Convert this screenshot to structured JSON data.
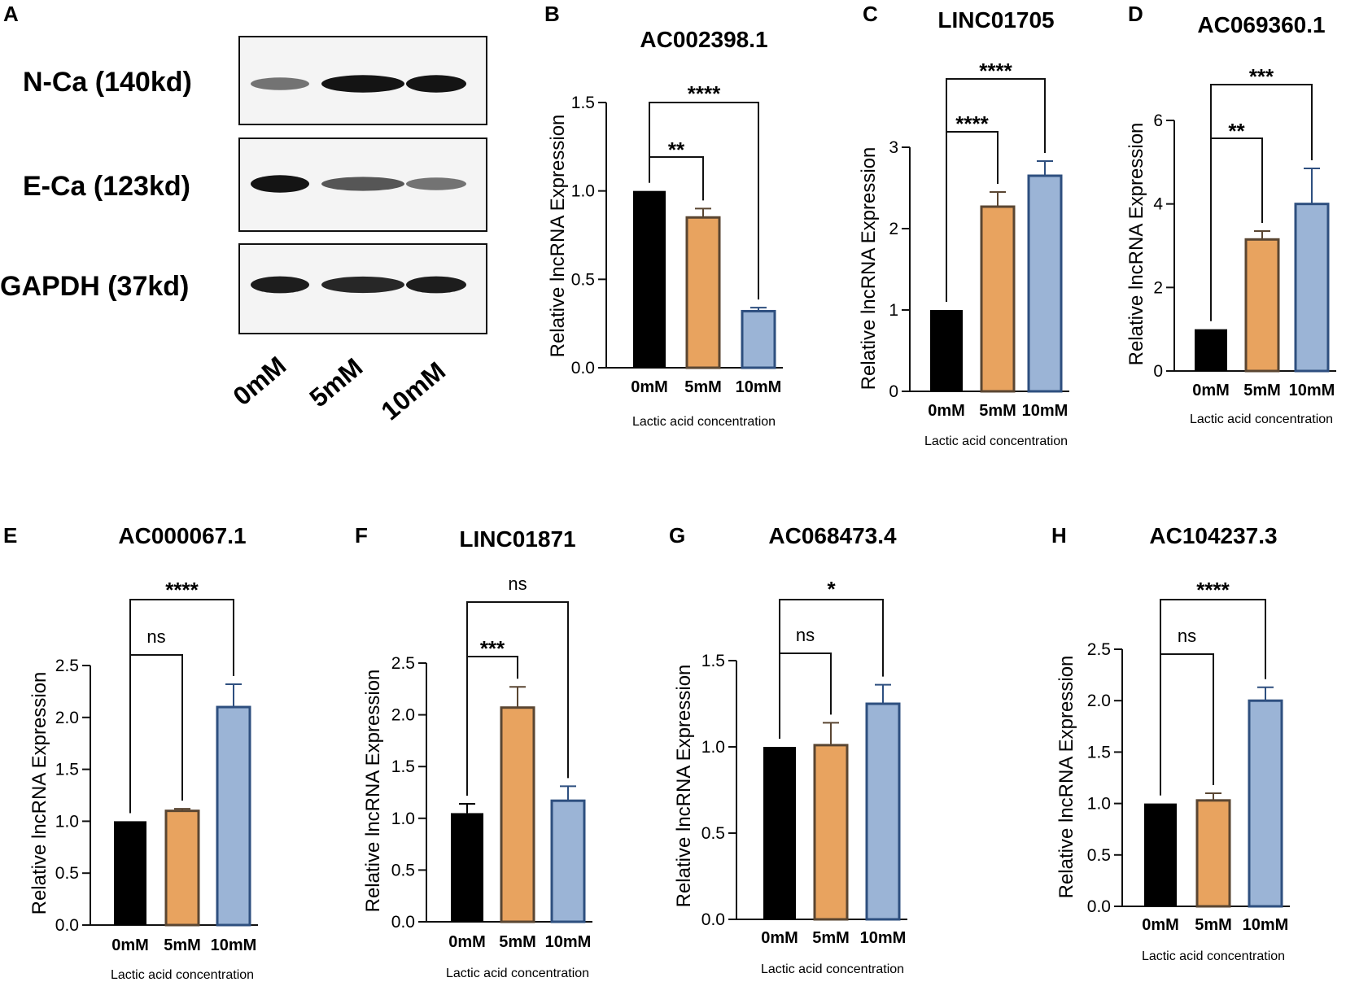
{
  "figure": {
    "western_blot": {
      "letter": "A",
      "rows": [
        {
          "label": "N-Ca (140kd)",
          "intensities": [
            0.45,
            0.95,
            0.95
          ]
        },
        {
          "label": "E-Ca (123kd)",
          "intensities": [
            0.95,
            0.6,
            0.45
          ]
        },
        {
          "label": "GAPDH (37kd)",
          "intensities": [
            0.9,
            0.85,
            0.9
          ]
        }
      ],
      "lanes": [
        "0mM",
        "5mM",
        "10mM"
      ]
    }
  },
  "colors": {
    "bar_0mM": "#000000",
    "bar_5mM": "#e8a35f",
    "bar_10mM": "#9bb4d6",
    "edge_5mM": "#5a4632",
    "edge_10mM": "#2e4f7f"
  },
  "chart_data": [
    {
      "letter": "B",
      "type": "bar",
      "title": "AC002398.1",
      "categories": [
        "0mM",
        "5mM",
        "10mM"
      ],
      "values": [
        1.0,
        0.85,
        0.32
      ],
      "errors": [
        0,
        0.05,
        0.02
      ],
      "ylim": [
        0,
        1.5
      ],
      "yticks": [
        "0.0",
        "0.5",
        "1.0",
        "1.5"
      ],
      "ylabel": "Relative lncRNA Expression",
      "xlabel": "Lactic acid concentration",
      "comparisons": [
        {
          "label": "**",
          "from": 0,
          "to": 1
        },
        {
          "label": "****",
          "from": 0,
          "to": 2
        }
      ]
    },
    {
      "letter": "C",
      "type": "bar",
      "title": "LINC01705",
      "categories": [
        "0mM",
        "5mM",
        "10mM"
      ],
      "values": [
        1.0,
        2.27,
        2.65
      ],
      "errors": [
        0,
        0.18,
        0.18
      ],
      "ylim": [
        0,
        3
      ],
      "yticks": [
        "0",
        "1",
        "2",
        "3"
      ],
      "ylabel": "Relative lncRNA Expression",
      "xlabel": "Lactic acid concentration",
      "comparisons": [
        {
          "label": "****",
          "from": 0,
          "to": 1
        },
        {
          "label": "****",
          "from": 0,
          "to": 2
        }
      ]
    },
    {
      "letter": "D",
      "type": "bar",
      "title": "AC069360.1",
      "categories": [
        "0mM",
        "5mM",
        "10mM"
      ],
      "values": [
        1.0,
        3.15,
        4.0
      ],
      "errors": [
        0,
        0.2,
        0.85
      ],
      "ylim": [
        0,
        6
      ],
      "yticks": [
        "0",
        "2",
        "4",
        "6"
      ],
      "ylabel": "Relative lncRNA Expression",
      "xlabel": "Lactic acid concentration",
      "comparisons": [
        {
          "label": "**",
          "from": 0,
          "to": 1
        },
        {
          "label": "***",
          "from": 0,
          "to": 2
        }
      ]
    },
    {
      "letter": "E",
      "type": "bar",
      "title": "AC000067.1",
      "categories": [
        "0mM",
        "5mM",
        "10mM"
      ],
      "values": [
        1.0,
        1.1,
        2.1
      ],
      "errors": [
        0,
        0.02,
        0.22
      ],
      "ylim": [
        0,
        2.5
      ],
      "yticks": [
        "0.0",
        "0.5",
        "1.0",
        "1.5",
        "2.0",
        "2.5"
      ],
      "ylabel": "Relative lncRNA Expression",
      "xlabel": "Lactic acid concentration",
      "comparisons": [
        {
          "label": "ns",
          "from": 0,
          "to": 1
        },
        {
          "label": "****",
          "from": 0,
          "to": 2
        }
      ]
    },
    {
      "letter": "F",
      "type": "bar",
      "title": "LINC01871",
      "categories": [
        "0mM",
        "5mM",
        "10mM"
      ],
      "values": [
        1.05,
        2.07,
        1.17
      ],
      "errors": [
        0.09,
        0.2,
        0.14
      ],
      "ylim": [
        0,
        2.5
      ],
      "yticks": [
        "0.0",
        "0.5",
        "1.0",
        "1.5",
        "2.0",
        "2.5"
      ],
      "ylabel": "Relative lncRNA Expression",
      "xlabel": "Lactic acid concentration",
      "comparisons": [
        {
          "label": "***",
          "from": 0,
          "to": 1
        },
        {
          "label": "ns",
          "from": 0,
          "to": 2
        }
      ]
    },
    {
      "letter": "G",
      "type": "bar",
      "title": "AC068473.4",
      "categories": [
        "0mM",
        "5mM",
        "10mM"
      ],
      "values": [
        1.0,
        1.01,
        1.25
      ],
      "errors": [
        0,
        0.13,
        0.11
      ],
      "ylim": [
        0,
        1.5
      ],
      "yticks": [
        "0.0",
        "0.5",
        "1.0",
        "1.5"
      ],
      "ylabel": "Relative lncRNA Expression",
      "xlabel": "Lactic acid concentration",
      "comparisons": [
        {
          "label": "ns",
          "from": 0,
          "to": 1
        },
        {
          "label": "*",
          "from": 0,
          "to": 2
        }
      ]
    },
    {
      "letter": "H",
      "type": "bar",
      "title": "AC104237.3",
      "categories": [
        "0mM",
        "5mM",
        "10mM"
      ],
      "values": [
        1.0,
        1.03,
        2.0
      ],
      "errors": [
        0,
        0.07,
        0.13
      ],
      "ylim": [
        0,
        2.5
      ],
      "yticks": [
        "0.0",
        "0.5",
        "1.0",
        "1.5",
        "2.0",
        "2.5"
      ],
      "ylabel": "Relative lncRNA Expression",
      "xlabel": "Lactic acid concentration",
      "comparisons": [
        {
          "label": "ns",
          "from": 0,
          "to": 1
        },
        {
          "label": "****",
          "from": 0,
          "to": 2
        }
      ]
    }
  ]
}
